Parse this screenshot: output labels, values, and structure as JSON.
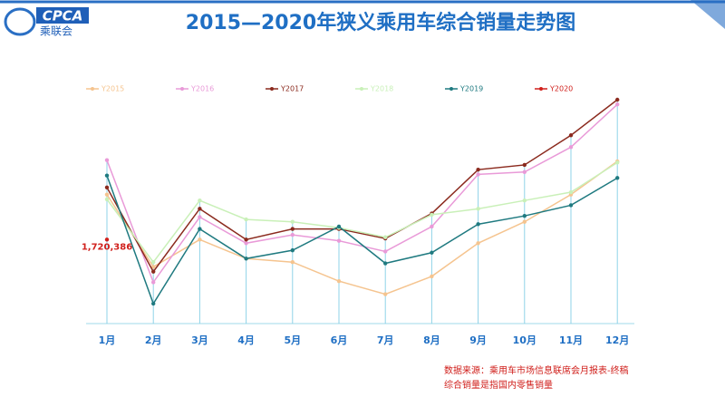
{
  "logo": {
    "mark": "CPCA",
    "name": "乘联会"
  },
  "chart_data": {
    "type": "line",
    "title": "2015—2020年狭义乘用车综合销量走势图",
    "categories": [
      "1月",
      "2月",
      "3月",
      "4月",
      "5月",
      "6月",
      "7月",
      "8月",
      "9月",
      "10月",
      "11月",
      "12月"
    ],
    "series": [
      {
        "name": "Y2015",
        "color": "#f5c48f",
        "values": [
          2100000,
          1490000,
          1720000,
          1560000,
          1530000,
          1370000,
          1260000,
          1410000,
          1690000,
          1870000,
          2100000,
          2380000
        ]
      },
      {
        "name": "Y2016",
        "color": "#e99ad8",
        "values": [
          2390000,
          1360000,
          1910000,
          1690000,
          1760000,
          1710000,
          1620000,
          1830000,
          2270000,
          2290000,
          2500000,
          2860000
        ]
      },
      {
        "name": "Y2017",
        "color": "#8b2a1e",
        "values": [
          2160000,
          1450000,
          1980000,
          1720000,
          1810000,
          1810000,
          1730000,
          1940000,
          2310000,
          2350000,
          2600000,
          2900000
        ]
      },
      {
        "name": "Y2018",
        "color": "#c9f0b8",
        "values": [
          2060000,
          1530000,
          2050000,
          1890000,
          1870000,
          1820000,
          1740000,
          1930000,
          1980000,
          2050000,
          2120000,
          2370000
        ]
      },
      {
        "name": "Y2019",
        "color": "#1f7a80",
        "values": [
          2260000,
          1180000,
          1810000,
          1560000,
          1630000,
          1830000,
          1520000,
          1610000,
          1850000,
          1920000,
          2010000,
          2240000
        ]
      },
      {
        "name": "Y2020",
        "color": "#d0201c",
        "values": [
          1720386,
          null,
          null,
          null,
          null,
          null,
          null,
          null,
          null,
          null,
          null,
          null
        ],
        "value_labels": [
          "1,720,386",
          null,
          null,
          null,
          null,
          null,
          null,
          null,
          null,
          null,
          null,
          null
        ]
      }
    ],
    "legend": "top",
    "footnotes": [
      "数据来源：乘用车市场信息联席会月报表-终稿",
      "综合销量是指国内零售销量"
    ]
  }
}
